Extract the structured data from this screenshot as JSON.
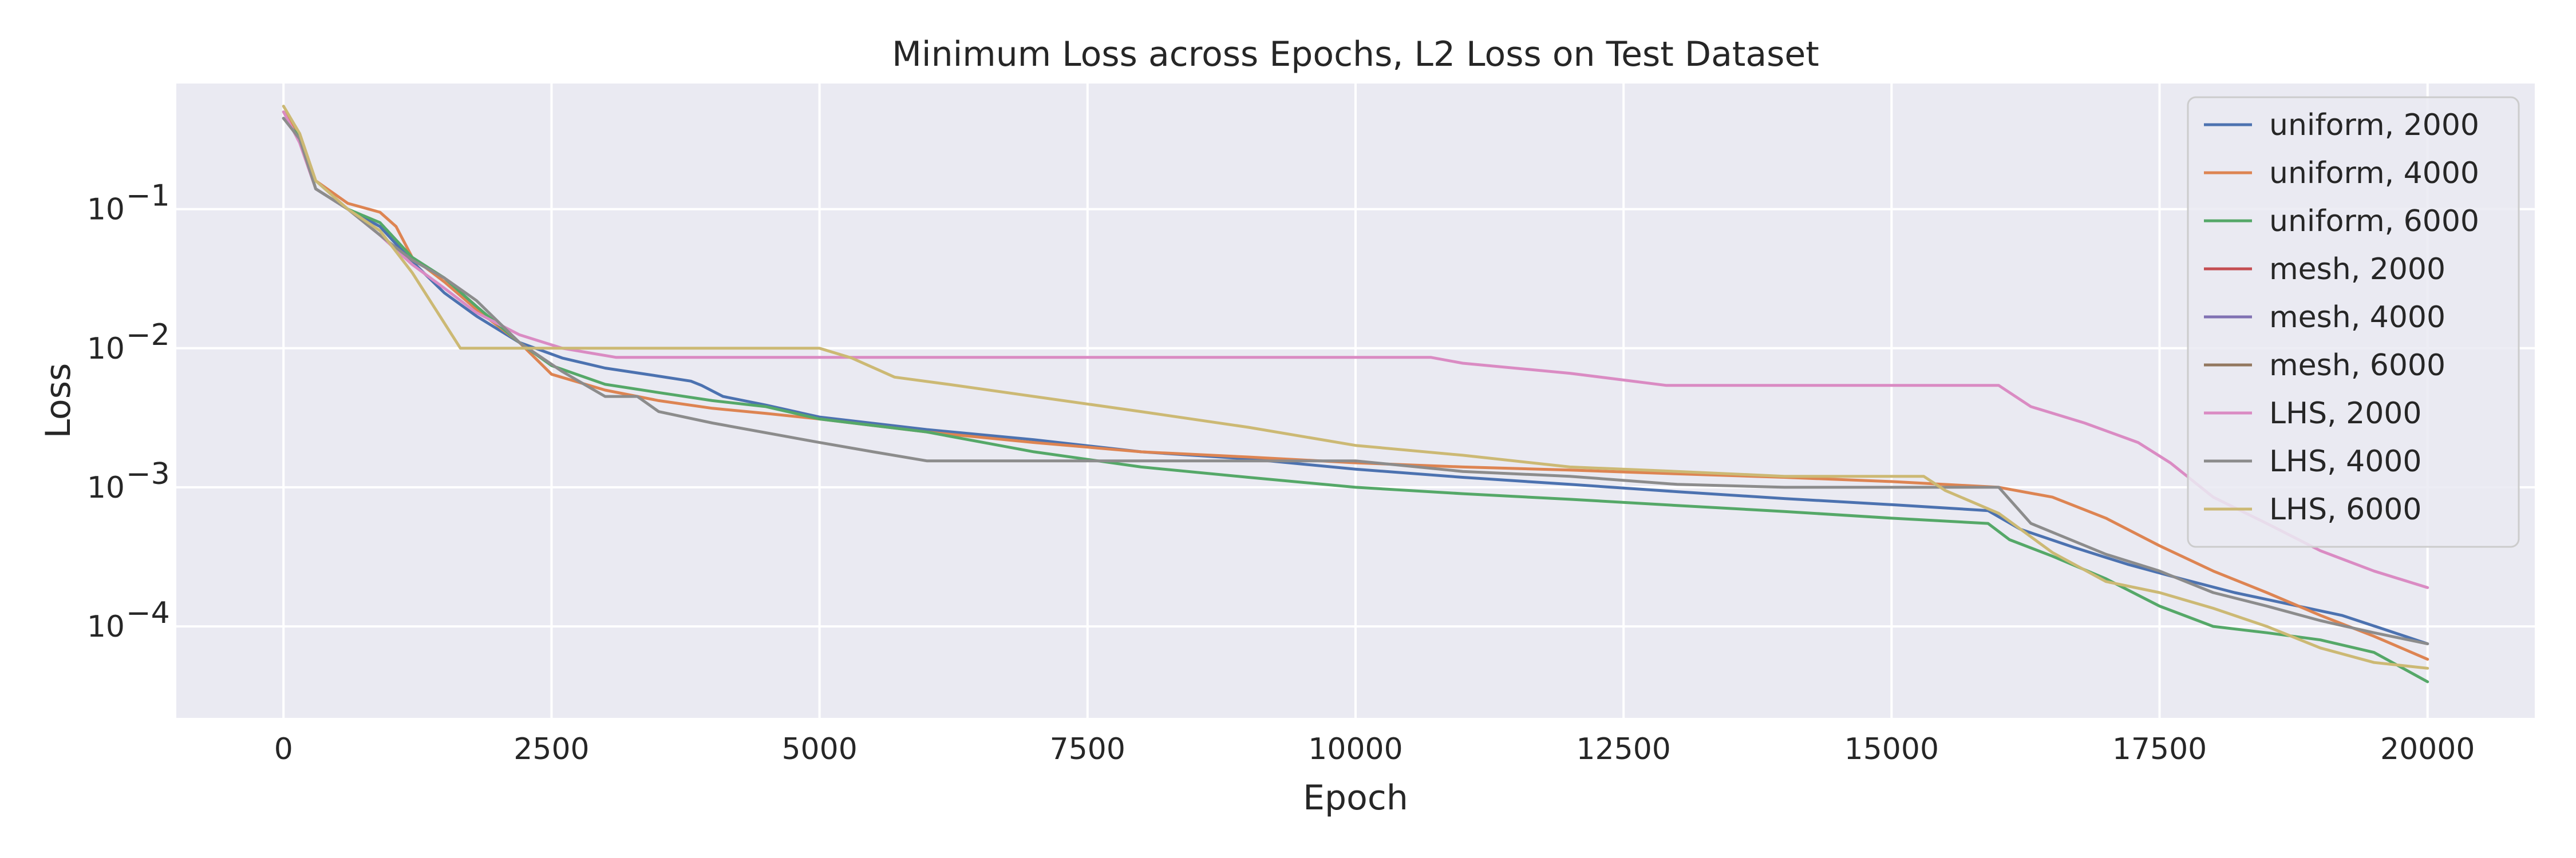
{
  "chart_data": {
    "type": "line",
    "title": "Minimum Loss across Epochs, L2 Loss on Test Dataset",
    "xlabel": "Epoch",
    "ylabel": "Loss",
    "yscale": "log",
    "xlim": [
      -1000,
      21000
    ],
    "ylim": [
      2.2e-05,
      0.8
    ],
    "xticks": [
      0,
      2500,
      5000,
      7500,
      10000,
      12500,
      15000,
      17500,
      20000
    ],
    "xtick_labels": [
      "0",
      "2500",
      "5000",
      "7500",
      "10000",
      "12500",
      "15000",
      "17500",
      "20000"
    ],
    "yticks": [
      0.1,
      0.01,
      0.001,
      0.0001
    ],
    "ytick_labels": [
      {
        "base": "10",
        "exp": "−1"
      },
      {
        "base": "10",
        "exp": "−2"
      },
      {
        "base": "10",
        "exp": "−3"
      },
      {
        "base": "10",
        "exp": "−4"
      }
    ],
    "grid": true,
    "background": "#eaeaf2",
    "legend_position": "upper-right",
    "series": [
      {
        "name": "uniform, 2000",
        "color": "#4c72b0",
        "points": [
          [
            0,
            0.45
          ],
          [
            150,
            0.33
          ],
          [
            300,
            0.14
          ],
          [
            600,
            0.1
          ],
          [
            900,
            0.075
          ],
          [
            1200,
            0.042
          ],
          [
            1500,
            0.025
          ],
          [
            1800,
            0.017
          ],
          [
            2200,
            0.011
          ],
          [
            2600,
            0.0085
          ],
          [
            3000,
            0.0072
          ],
          [
            3500,
            0.0063
          ],
          [
            3800,
            0.0058
          ],
          [
            3900,
            0.0054
          ],
          [
            4100,
            0.0045
          ],
          [
            4500,
            0.0039
          ],
          [
            5000,
            0.0032
          ],
          [
            6000,
            0.0026
          ],
          [
            7000,
            0.0022
          ],
          [
            8000,
            0.0018
          ],
          [
            9000,
            0.0016
          ],
          [
            10000,
            0.00135
          ],
          [
            11000,
            0.00118
          ],
          [
            12000,
            0.00105
          ],
          [
            13000,
            0.00093
          ],
          [
            14000,
            0.00083
          ],
          [
            15000,
            0.00075
          ],
          [
            15900,
            0.00068
          ],
          [
            16200,
            0.0005
          ],
          [
            16700,
            0.00037
          ],
          [
            17200,
            0.00028
          ],
          [
            17700,
            0.00022
          ],
          [
            18200,
            0.000175
          ],
          [
            18700,
            0.000145
          ],
          [
            19200,
            0.00012
          ],
          [
            19600,
            9.5e-05
          ],
          [
            20000,
            7.5e-05
          ]
        ]
      },
      {
        "name": "uniform, 4000",
        "color": "#dd8452",
        "points": [
          [
            0,
            0.5
          ],
          [
            150,
            0.35
          ],
          [
            300,
            0.16
          ],
          [
            600,
            0.11
          ],
          [
            900,
            0.095
          ],
          [
            1050,
            0.075
          ],
          [
            1200,
            0.045
          ],
          [
            1500,
            0.03
          ],
          [
            1800,
            0.019
          ],
          [
            2200,
            0.011
          ],
          [
            2500,
            0.0065
          ],
          [
            3000,
            0.005
          ],
          [
            3500,
            0.0042
          ],
          [
            4000,
            0.0037
          ],
          [
            4500,
            0.0034
          ],
          [
            5000,
            0.0031
          ],
          [
            6000,
            0.0025
          ],
          [
            7000,
            0.0021
          ],
          [
            8000,
            0.0018
          ],
          [
            9000,
            0.00165
          ],
          [
            10000,
            0.0015
          ],
          [
            11000,
            0.0014
          ],
          [
            12000,
            0.00133
          ],
          [
            13000,
            0.00125
          ],
          [
            14000,
            0.00118
          ],
          [
            15000,
            0.0011
          ],
          [
            16000,
            0.001
          ],
          [
            16500,
            0.00085
          ],
          [
            17000,
            0.0006
          ],
          [
            17500,
            0.00038
          ],
          [
            18000,
            0.00025
          ],
          [
            18500,
            0.000175
          ],
          [
            19000,
            0.00012
          ],
          [
            19500,
            8.5e-05
          ],
          [
            20000,
            5.8e-05
          ]
        ]
      },
      {
        "name": "uniform, 6000",
        "color": "#55a868",
        "points": [
          [
            0,
            0.45
          ],
          [
            150,
            0.33
          ],
          [
            300,
            0.14
          ],
          [
            600,
            0.1
          ],
          [
            900,
            0.08
          ],
          [
            1200,
            0.045
          ],
          [
            1500,
            0.032
          ],
          [
            1800,
            0.02
          ],
          [
            2200,
            0.011
          ],
          [
            2500,
            0.0075
          ],
          [
            3000,
            0.0055
          ],
          [
            3500,
            0.0048
          ],
          [
            4000,
            0.0042
          ],
          [
            4500,
            0.0038
          ],
          [
            5000,
            0.0031
          ],
          [
            6000,
            0.0025
          ],
          [
            7000,
            0.0018
          ],
          [
            8000,
            0.0014
          ],
          [
            9000,
            0.00118
          ],
          [
            10000,
            0.001
          ],
          [
            11000,
            0.0009
          ],
          [
            12000,
            0.00082
          ],
          [
            13000,
            0.00074
          ],
          [
            14000,
            0.00067
          ],
          [
            15000,
            0.0006
          ],
          [
            15900,
            0.00055
          ],
          [
            16100,
            0.00042
          ],
          [
            16500,
            0.00032
          ],
          [
            17000,
            0.00022
          ],
          [
            17500,
            0.00014
          ],
          [
            18000,
            0.0001
          ],
          [
            18500,
            9e-05
          ],
          [
            19000,
            8e-05
          ],
          [
            19500,
            6.5e-05
          ],
          [
            20000,
            4e-05
          ]
        ]
      },
      {
        "name": "mesh, 2000",
        "color": "#c44e52",
        "points": []
      },
      {
        "name": "mesh, 4000",
        "color": "#8172b3",
        "points": []
      },
      {
        "name": "mesh, 6000",
        "color": "#937860",
        "points": []
      },
      {
        "name": "LHS, 2000",
        "color": "#da8bc3",
        "points": [
          [
            0,
            0.5
          ],
          [
            150,
            0.3
          ],
          [
            300,
            0.14
          ],
          [
            600,
            0.1
          ],
          [
            900,
            0.065
          ],
          [
            1200,
            0.04
          ],
          [
            1500,
            0.027
          ],
          [
            1800,
            0.018
          ],
          [
            2200,
            0.0125
          ],
          [
            2600,
            0.01
          ],
          [
            3100,
            0.0086
          ],
          [
            5000,
            0.0086
          ],
          [
            10700,
            0.0086
          ],
          [
            11000,
            0.0078
          ],
          [
            12000,
            0.0066
          ],
          [
            12900,
            0.0054
          ],
          [
            14000,
            0.0054
          ],
          [
            16000,
            0.0054
          ],
          [
            16300,
            0.0038
          ],
          [
            16800,
            0.0029
          ],
          [
            17300,
            0.0021
          ],
          [
            17600,
            0.0015
          ],
          [
            18000,
            0.00085
          ],
          [
            18500,
            0.00055
          ],
          [
            19000,
            0.00035
          ],
          [
            19500,
            0.00025
          ],
          [
            20000,
            0.00019
          ]
        ]
      },
      {
        "name": "LHS, 4000",
        "color": "#8c8c8c",
        "points": [
          [
            0,
            0.45
          ],
          [
            150,
            0.32
          ],
          [
            300,
            0.14
          ],
          [
            600,
            0.1
          ],
          [
            900,
            0.065
          ],
          [
            1200,
            0.043
          ],
          [
            1500,
            0.032
          ],
          [
            1800,
            0.022
          ],
          [
            2200,
            0.011
          ],
          [
            2600,
            0.0068
          ],
          [
            3000,
            0.0045
          ],
          [
            3300,
            0.0045
          ],
          [
            3500,
            0.0035
          ],
          [
            4000,
            0.0029
          ],
          [
            5000,
            0.0021
          ],
          [
            5500,
            0.0018
          ],
          [
            6000,
            0.00155
          ],
          [
            8000,
            0.00155
          ],
          [
            10000,
            0.00155
          ],
          [
            11000,
            0.0013
          ],
          [
            12000,
            0.0012
          ],
          [
            13000,
            0.00105
          ],
          [
            14000,
            0.001
          ],
          [
            16000,
            0.001
          ],
          [
            16300,
            0.00055
          ],
          [
            17000,
            0.00033
          ],
          [
            17500,
            0.00025
          ],
          [
            18000,
            0.000175
          ],
          [
            18500,
            0.00014
          ],
          [
            19000,
            0.00011
          ],
          [
            19500,
            9e-05
          ],
          [
            20000,
            7.5e-05
          ]
        ]
      },
      {
        "name": "LHS, 6000",
        "color": "#ccb974",
        "points": [
          [
            0,
            0.55
          ],
          [
            150,
            0.35
          ],
          [
            300,
            0.16
          ],
          [
            600,
            0.1
          ],
          [
            900,
            0.07
          ],
          [
            1200,
            0.035
          ],
          [
            1650,
            0.01
          ],
          [
            3000,
            0.01
          ],
          [
            5000,
            0.01
          ],
          [
            5300,
            0.0085
          ],
          [
            5700,
            0.0062
          ],
          [
            6200,
            0.0055
          ],
          [
            7000,
            0.0045
          ],
          [
            8000,
            0.0035
          ],
          [
            9000,
            0.0027
          ],
          [
            10000,
            0.002
          ],
          [
            11000,
            0.0017
          ],
          [
            12000,
            0.0014
          ],
          [
            13000,
            0.0013
          ],
          [
            14000,
            0.0012
          ],
          [
            15300,
            0.0012
          ],
          [
            15500,
            0.00095
          ],
          [
            16000,
            0.00065
          ],
          [
            16500,
            0.00034
          ],
          [
            17000,
            0.00021
          ],
          [
            17500,
            0.000175
          ],
          [
            18000,
            0.000135
          ],
          [
            18500,
            0.0001
          ],
          [
            19000,
            7e-05
          ],
          [
            19500,
            5.5e-05
          ],
          [
            20000,
            5e-05
          ]
        ]
      }
    ]
  }
}
